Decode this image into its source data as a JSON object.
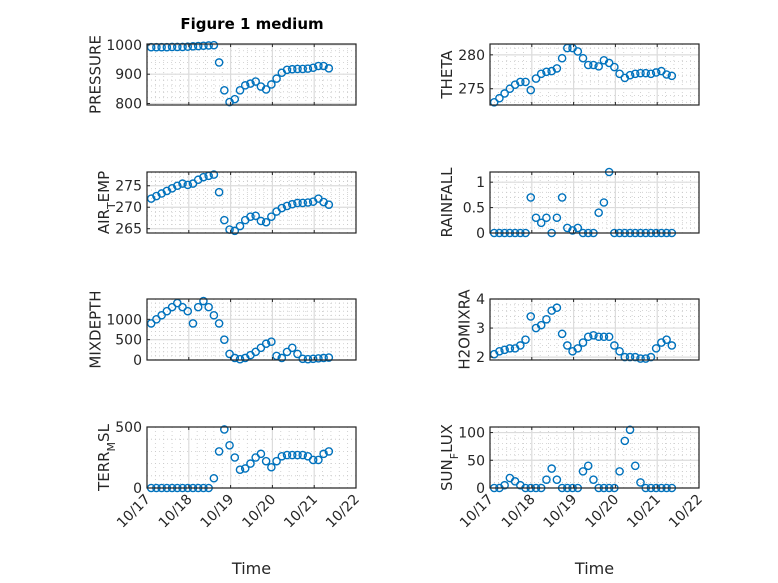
{
  "figure_title": "Figure 1 medium",
  "marker_color": "#0072BD",
  "chart_data": [
    {
      "type": "scatter",
      "id": "pressure",
      "ylabel": {
        "main": "PRESSURE",
        "sub": "",
        "rest": ""
      },
      "ylim": [
        795,
        1003
      ],
      "yticks": [
        800,
        900,
        1000
      ],
      "yticklabels": [
        "800",
        "900",
        "1000"
      ],
      "x": [
        0.1,
        0.225,
        0.35,
        0.475,
        0.6,
        0.725,
        0.85,
        0.975,
        1.1,
        1.225,
        1.35,
        1.475,
        1.6,
        1.725,
        1.85,
        1.975,
        2.1,
        2.225,
        2.35,
        2.475,
        2.6,
        2.725,
        2.85,
        2.975,
        3.1,
        3.225,
        3.35,
        3.475,
        3.6,
        3.725,
        3.85,
        3.975,
        4.1,
        4.225,
        4.35
      ],
      "y": [
        992,
        992,
        992,
        992,
        993,
        993,
        993,
        994,
        995,
        996,
        997,
        998,
        999,
        940,
        845,
        805,
        815,
        845,
        862,
        868,
        875,
        858,
        848,
        865,
        885,
        905,
        915,
        917,
        918,
        918,
        919,
        922,
        928,
        928,
        920
      ]
    },
    {
      "type": "scatter",
      "id": "theta",
      "ylabel": {
        "main": "THETA",
        "sub": "",
        "rest": ""
      },
      "ylim": [
        272.6,
        281.6
      ],
      "yticks": [
        275,
        280
      ],
      "yticklabels": [
        "275",
        "280"
      ],
      "x": [
        0.1,
        0.225,
        0.35,
        0.475,
        0.6,
        0.725,
        0.85,
        0.975,
        1.1,
        1.225,
        1.35,
        1.475,
        1.6,
        1.725,
        1.85,
        1.975,
        2.1,
        2.225,
        2.35,
        2.475,
        2.6,
        2.725,
        2.85,
        2.975,
        3.1,
        3.225,
        3.35,
        3.475,
        3.6,
        3.725,
        3.85,
        3.975,
        4.1,
        4.225,
        4.35
      ],
      "y": [
        273,
        273.6,
        274.3,
        275,
        275.6,
        276,
        276,
        274.8,
        276.5,
        277.2,
        277.5,
        277.6,
        278,
        279.5,
        281,
        281,
        280.5,
        279.5,
        278.5,
        278.5,
        278.3,
        279.2,
        278.8,
        278.2,
        277.2,
        276.6,
        277,
        277.2,
        277.3,
        277.3,
        277.2,
        277.4,
        277.6,
        277.1,
        276.9
      ]
    },
    {
      "type": "scatter",
      "id": "air_temp",
      "ylabel": {
        "main": "AIR",
        "sub": "T",
        "rest": "EMP"
      },
      "ylim": [
        264,
        278.2
      ],
      "yticks": [
        265,
        270,
        275
      ],
      "yticklabels": [
        "265",
        "270",
        "275"
      ],
      "x": [
        0.1,
        0.225,
        0.35,
        0.475,
        0.6,
        0.725,
        0.85,
        0.975,
        1.1,
        1.225,
        1.35,
        1.475,
        1.6,
        1.725,
        1.85,
        1.975,
        2.1,
        2.225,
        2.35,
        2.475,
        2.6,
        2.725,
        2.85,
        2.975,
        3.1,
        3.225,
        3.35,
        3.475,
        3.6,
        3.725,
        3.85,
        3.975,
        4.1,
        4.225,
        4.35
      ],
      "y": [
        272,
        272.6,
        273.2,
        273.8,
        274.4,
        275,
        275.5,
        275.2,
        275.5,
        276.4,
        277,
        277.3,
        277.6,
        273.5,
        267,
        264.8,
        264.5,
        265.6,
        267,
        267.8,
        268,
        266.8,
        266.5,
        267.8,
        269,
        269.8,
        270.3,
        270.7,
        271,
        271,
        271.1,
        271.3,
        272,
        271.2,
        270.6
      ]
    },
    {
      "type": "scatter",
      "id": "rainfall",
      "ylabel": {
        "main": "RAINFALL",
        "sub": "",
        "rest": ""
      },
      "ylim": [
        0,
        1.2
      ],
      "yticks": [
        0,
        0.5,
        1
      ],
      "yticklabels": [
        "0",
        "0.5",
        "1"
      ],
      "x": [
        0.1,
        0.225,
        0.35,
        0.475,
        0.6,
        0.725,
        0.85,
        0.975,
        1.1,
        1.225,
        1.35,
        1.475,
        1.6,
        1.725,
        1.85,
        1.975,
        2.1,
        2.225,
        2.35,
        2.475,
        2.6,
        2.725,
        2.85,
        2.975,
        3.1,
        3.225,
        3.35,
        3.475,
        3.6,
        3.725,
        3.85,
        3.975,
        4.1,
        4.225,
        4.35
      ],
      "y": [
        0,
        0,
        0,
        0,
        0,
        0,
        0,
        0.7,
        0.3,
        0.2,
        0.3,
        0,
        0.3,
        0.7,
        0.1,
        0.05,
        0.1,
        0,
        0,
        0,
        0.4,
        0.6,
        1.2,
        0,
        0,
        0,
        0,
        0,
        0,
        0,
        0,
        0,
        0,
        0,
        0
      ]
    },
    {
      "type": "scatter",
      "id": "mixdepth",
      "ylabel": {
        "main": "MIXDEPTH",
        "sub": "",
        "rest": ""
      },
      "ylim": [
        0,
        1500
      ],
      "yticks": [
        0,
        500,
        1000
      ],
      "yticklabels": [
        "0",
        "500",
        "1000"
      ],
      "x": [
        0.1,
        0.225,
        0.35,
        0.475,
        0.6,
        0.725,
        0.85,
        0.975,
        1.1,
        1.225,
        1.35,
        1.475,
        1.6,
        1.725,
        1.85,
        1.975,
        2.1,
        2.225,
        2.35,
        2.475,
        2.6,
        2.725,
        2.85,
        2.975,
        3.1,
        3.225,
        3.35,
        3.475,
        3.6,
        3.725,
        3.85,
        3.975,
        4.1,
        4.225,
        4.35
      ],
      "y": [
        900,
        1000,
        1100,
        1200,
        1300,
        1400,
        1300,
        1200,
        900,
        1300,
        1450,
        1300,
        1100,
        900,
        500,
        150,
        50,
        20,
        50,
        120,
        200,
        300,
        400,
        450,
        100,
        50,
        200,
        300,
        150,
        30,
        20,
        30,
        40,
        50,
        60
      ]
    },
    {
      "type": "scatter",
      "id": "h2omixra",
      "ylabel": {
        "main": "H2OMIXRA",
        "sub": "",
        "rest": ""
      },
      "ylim": [
        1.9,
        4
      ],
      "yticks": [
        2,
        3,
        4
      ],
      "yticklabels": [
        "2",
        "3",
        "4"
      ],
      "x": [
        0.1,
        0.225,
        0.35,
        0.475,
        0.6,
        0.725,
        0.85,
        0.975,
        1.1,
        1.225,
        1.35,
        1.475,
        1.6,
        1.725,
        1.85,
        1.975,
        2.1,
        2.225,
        2.35,
        2.475,
        2.6,
        2.725,
        2.85,
        2.975,
        3.1,
        3.225,
        3.35,
        3.475,
        3.6,
        3.725,
        3.85,
        3.975,
        4.1,
        4.225,
        4.35
      ],
      "y": [
        2.1,
        2.2,
        2.25,
        2.3,
        2.3,
        2.4,
        2.6,
        3.4,
        3.0,
        3.1,
        3.3,
        3.6,
        3.7,
        2.8,
        2.4,
        2.2,
        2.3,
        2.5,
        2.7,
        2.75,
        2.7,
        2.7,
        2.7,
        2.4,
        2.2,
        2.0,
        2.0,
        2.0,
        1.95,
        1.95,
        2.0,
        2.3,
        2.5,
        2.6,
        2.4
      ]
    },
    {
      "type": "scatter",
      "id": "terr_msl",
      "ylabel": {
        "main": "TERR",
        "sub": "M",
        "rest": "SL"
      },
      "ylim": [
        0,
        500
      ],
      "yticks": [
        0,
        500
      ],
      "yticklabels": [
        "0",
        "500"
      ],
      "x": [
        0.1,
        0.225,
        0.35,
        0.475,
        0.6,
        0.725,
        0.85,
        0.975,
        1.1,
        1.225,
        1.35,
        1.475,
        1.6,
        1.725,
        1.85,
        1.975,
        2.1,
        2.225,
        2.35,
        2.475,
        2.6,
        2.725,
        2.85,
        2.975,
        3.1,
        3.225,
        3.35,
        3.475,
        3.6,
        3.725,
        3.85,
        3.975,
        4.1,
        4.225,
        4.35
      ],
      "y": [
        0,
        0,
        0,
        0,
        0,
        0,
        0,
        0,
        0,
        0,
        0,
        0,
        80,
        300,
        480,
        350,
        250,
        150,
        160,
        200,
        250,
        280,
        220,
        170,
        220,
        260,
        270,
        270,
        270,
        270,
        260,
        230,
        230,
        280,
        300
      ],
      "xlabel": "Time"
    },
    {
      "type": "scatter",
      "id": "sun_flux",
      "ylabel": {
        "main": "SUN",
        "sub": "F",
        "rest": "LUX"
      },
      "ylim": [
        0,
        110
      ],
      "yticks": [
        0,
        50,
        100
      ],
      "yticklabels": [
        "0",
        "50",
        "100"
      ],
      "x": [
        0.1,
        0.225,
        0.35,
        0.475,
        0.6,
        0.725,
        0.85,
        0.975,
        1.1,
        1.225,
        1.35,
        1.475,
        1.6,
        1.725,
        1.85,
        1.975,
        2.1,
        2.225,
        2.35,
        2.475,
        2.6,
        2.725,
        2.85,
        2.975,
        3.1,
        3.225,
        3.35,
        3.475,
        3.6,
        3.725,
        3.85,
        3.975,
        4.1,
        4.225,
        4.35
      ],
      "y": [
        0,
        0,
        5,
        18,
        12,
        5,
        0,
        0,
        0,
        0,
        15,
        35,
        15,
        0,
        0,
        0,
        0,
        30,
        40,
        15,
        0,
        0,
        0,
        0,
        30,
        85,
        105,
        40,
        10,
        0,
        0,
        0,
        0,
        0,
        0
      ],
      "xlabel": "Time"
    }
  ],
  "x_axis": {
    "xlim": [
      0,
      5
    ],
    "xticks": [
      0,
      1,
      2,
      3,
      4,
      5
    ],
    "xticklabels": [
      "10/17",
      "10/18",
      "10/19",
      "10/20",
      "10/21",
      "10/22"
    ]
  }
}
